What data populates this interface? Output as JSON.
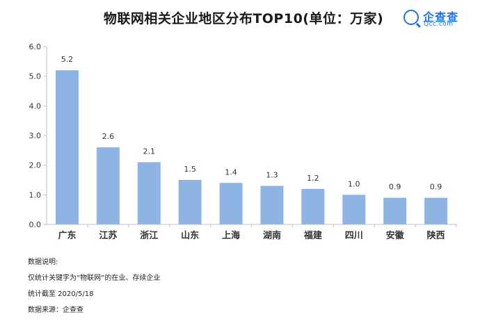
{
  "chart_data": {
    "type": "bar",
    "title": "物联网相关企业地区分布TOP10(单位：万家)",
    "categories": [
      "广东",
      "江苏",
      "浙江",
      "山东",
      "上海",
      "湖南",
      "福建",
      "四川",
      "安徽",
      "陕西"
    ],
    "values": [
      5.2,
      2.6,
      2.1,
      1.5,
      1.4,
      1.3,
      1.2,
      1.0,
      0.9,
      0.9
    ],
    "value_labels": [
      "5.2",
      "2.6",
      "2.1",
      "1.5",
      "1.4",
      "1.3",
      "1.2",
      "1.0",
      "0.9",
      "0.9"
    ],
    "y_ticks": [
      "0.0",
      "1.0",
      "2.0",
      "3.0",
      "4.0",
      "5.0",
      "6.0"
    ],
    "ylim": [
      0,
      6
    ],
    "xlabel": "",
    "ylabel": "",
    "bar_color": "#8db4e2",
    "grid": false
  },
  "logo": {
    "brand": "企查查",
    "domain": "Qcc.com"
  },
  "notes": {
    "heading": "数据说明:",
    "line1": "仅统计关键字为“物联网”的在业、存续企业",
    "line2": "统计截至 2020/5/18",
    "line3": "数据来源：企查查"
  }
}
